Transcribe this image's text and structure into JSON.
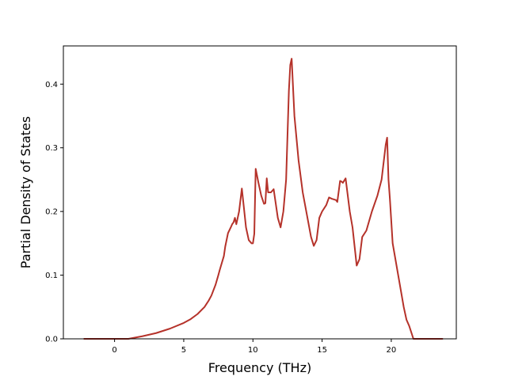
{
  "chart_data": {
    "type": "line",
    "xlabel": "Frequency (THz)",
    "ylabel": "Partial Density of States",
    "xlim": [
      -3.7,
      24.7
    ],
    "ylim": [
      0.0,
      0.46
    ],
    "xticks": [
      0,
      5,
      10,
      15,
      20
    ],
    "yticks": [
      0.0,
      0.1,
      0.2,
      0.3,
      0.4
    ],
    "xtick_labels": [
      "0",
      "5",
      "10",
      "15",
      "20"
    ],
    "ytick_labels": [
      "0.0",
      "0.1",
      "0.2",
      "0.3",
      "0.4"
    ],
    "grid": false,
    "series": [
      {
        "color": "#b5322a",
        "x": [
          -2.2,
          -1,
          0,
          1,
          2,
          3,
          4,
          5,
          5.5,
          6,
          6.5,
          6.8,
          7,
          7.3,
          7.5,
          7.6,
          7.9,
          8.0,
          8.2,
          8.4,
          8.5,
          8.6,
          8.7,
          8.8,
          9.0,
          9.2,
          9.5,
          9.7,
          9.9,
          10.0,
          10.1,
          10.2,
          10.4,
          10.6,
          10.8,
          10.9,
          11.0,
          11.1,
          11.3,
          11.5,
          11.8,
          12.0,
          12.2,
          12.4,
          12.6,
          12.7,
          12.8,
          13.0,
          13.3,
          13.6,
          13.9,
          14.2,
          14.4,
          14.6,
          14.8,
          15.0,
          15.3,
          15.5,
          15.7,
          16.0,
          16.1,
          16.3,
          16.4,
          16.5,
          16.7,
          17.0,
          17.2,
          17.3,
          17.4,
          17.5,
          17.7,
          17.9,
          18.2,
          18.6,
          19.0,
          19.3,
          19.6,
          19.7,
          19.8,
          19.9,
          20.1,
          20.5,
          20.9,
          21.1,
          21.3,
          21.6,
          22.0,
          23.7
        ],
        "y": [
          0.0,
          0.0,
          0.0,
          0.0,
          0.004,
          0.009,
          0.016,
          0.025,
          0.031,
          0.039,
          0.05,
          0.06,
          0.068,
          0.085,
          0.1,
          0.108,
          0.13,
          0.145,
          0.166,
          0.175,
          0.18,
          0.183,
          0.19,
          0.18,
          0.2,
          0.236,
          0.175,
          0.155,
          0.15,
          0.15,
          0.165,
          0.267,
          0.245,
          0.225,
          0.212,
          0.213,
          0.252,
          0.23,
          0.23,
          0.235,
          0.19,
          0.175,
          0.2,
          0.25,
          0.39,
          0.43,
          0.44,
          0.35,
          0.28,
          0.23,
          0.195,
          0.16,
          0.146,
          0.155,
          0.19,
          0.2,
          0.21,
          0.222,
          0.22,
          0.218,
          0.215,
          0.248,
          0.247,
          0.245,
          0.252,
          0.2,
          0.175,
          0.155,
          0.135,
          0.115,
          0.125,
          0.16,
          0.17,
          0.2,
          0.225,
          0.25,
          0.305,
          0.316,
          0.25,
          0.22,
          0.15,
          0.1,
          0.05,
          0.03,
          0.02,
          0.0,
          0.0,
          0.0
        ]
      }
    ]
  }
}
